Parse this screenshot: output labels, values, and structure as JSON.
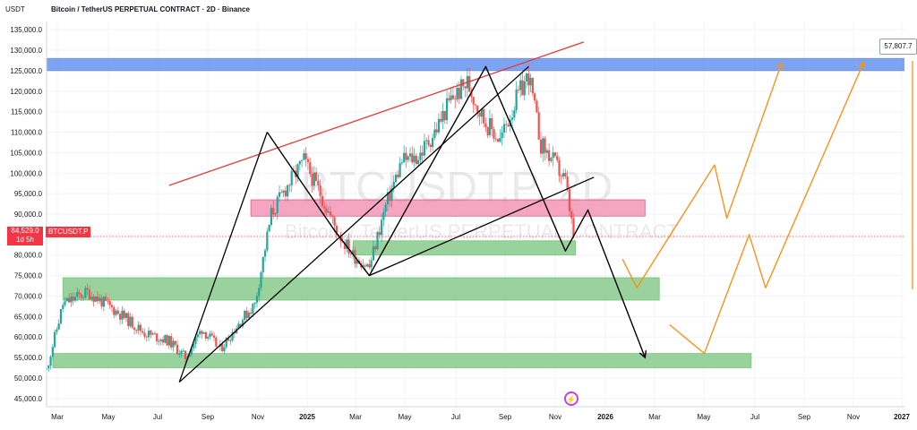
{
  "header": {
    "currency": "USDT",
    "title": "Bitcoin / TetherUS PERPETUAL CONTRACT · 2D · Binance"
  },
  "price_tag": {
    "price": "84,529.0",
    "countdown": "1d 5h",
    "symbol": "BTCUSDT.P"
  },
  "right_tag": "57,807.7",
  "watermark": {
    "line1": "BTCUSDT.P, 2D",
    "line2": "Bitcoin / TetherUS PERPETUAL CONTRACT"
  },
  "colors": {
    "up": "#26a69a",
    "down": "#ef5350",
    "blue_zone": "#5b8def",
    "pink_zone": "#f48fb1",
    "green_zone": "#81c784",
    "projection": "#f7931a",
    "trendline": "#e53935",
    "path": "#000000"
  },
  "chart_data": {
    "type": "candlestick",
    "title": "Bitcoin / TetherUS PERPETUAL CONTRACT · 2D · Binance",
    "ylabel": "USDT",
    "ylim": [
      43000,
      137000
    ],
    "y_ticks": [
      "135,000.0",
      "130,000.0",
      "125,000.0",
      "120,000.0",
      "115,000.0",
      "110,000.0",
      "105,000.0",
      "100,000.0",
      "95,000.0",
      "90,000.0",
      "85,000.0",
      "80,000.0",
      "75,000.0",
      "70,000.0",
      "65,000.0",
      "60,000.0",
      "55,000.0",
      "50,000.0",
      "45,000.0"
    ],
    "x_ticks": [
      "Mar",
      "May",
      "Jul",
      "Sep",
      "Nov",
      "2025",
      "Mar",
      "May",
      "Jul",
      "Sep",
      "Nov",
      "2026",
      "Mar",
      "May",
      "Jul",
      "Sep",
      "Nov",
      "2027"
    ],
    "last_price": 84529.0,
    "price_anchors": [
      [
        0,
        52000
      ],
      [
        8,
        68000
      ],
      [
        20,
        71000
      ],
      [
        35,
        66000
      ],
      [
        48,
        61000
      ],
      [
        60,
        59000
      ],
      [
        68,
        55000
      ],
      [
        76,
        62000
      ],
      [
        85,
        57000
      ],
      [
        95,
        64000
      ],
      [
        102,
        68000
      ],
      [
        110,
        90000
      ],
      [
        118,
        97000
      ],
      [
        126,
        103000
      ],
      [
        134,
        95000
      ],
      [
        142,
        86000
      ],
      [
        150,
        80000
      ],
      [
        158,
        77000
      ],
      [
        166,
        92000
      ],
      [
        174,
        103000
      ],
      [
        182,
        104000
      ],
      [
        190,
        110000
      ],
      [
        198,
        118000
      ],
      [
        206,
        122000
      ],
      [
        214,
        113000
      ],
      [
        222,
        108000
      ],
      [
        230,
        118000
      ],
      [
        236,
        124000
      ],
      [
        242,
        107000
      ],
      [
        248,
        103000
      ],
      [
        254,
        98000
      ],
      [
        258,
        84529
      ]
    ],
    "zones": [
      {
        "kind": "blue",
        "x0": 0,
        "x1": 440,
        "y_low": 125000,
        "y_high": 128000
      },
      {
        "kind": "pink",
        "x0": 100,
        "x1": 293,
        "y_low": 89500,
        "y_high": 93500
      },
      {
        "kind": "green",
        "x0": 150,
        "x1": 259,
        "y_low": 80000,
        "y_high": 83500
      },
      {
        "kind": "green",
        "x0": 8,
        "x1": 300,
        "y_low": 69000,
        "y_high": 74500
      },
      {
        "kind": "green",
        "x0": 3,
        "x1": 345,
        "y_low": 52500,
        "y_high": 56000
      }
    ],
    "trendlines": [
      {
        "kind": "red",
        "points": [
          [
            60,
            97000
          ],
          [
            263,
            132000
          ]
        ]
      },
      {
        "kind": "black",
        "points": [
          [
            65,
            49000
          ],
          [
            108,
            110000
          ]
        ]
      },
      {
        "kind": "black",
        "points": [
          [
            65,
            49000
          ],
          [
            236,
            126000
          ]
        ]
      },
      {
        "kind": "black",
        "points": [
          [
            158,
            75000
          ],
          [
            268,
            99000
          ]
        ]
      }
    ],
    "paths": [
      {
        "kind": "black",
        "points": [
          [
            108,
            110000
          ],
          [
            141,
            86000
          ],
          [
            158,
            75000
          ],
          [
            215,
            126000
          ],
          [
            254,
            81000
          ],
          [
            265,
            91000
          ],
          [
            293,
            55000
          ]
        ]
      },
      {
        "kind": "orange",
        "points": [
          [
            282,
            79000
          ],
          [
            289,
            72000
          ],
          [
            327,
            102000
          ],
          [
            333,
            89000
          ],
          [
            360,
            127000
          ]
        ]
      },
      {
        "kind": "orange",
        "points": [
          [
            305,
            63000
          ],
          [
            322,
            56000
          ],
          [
            344,
            85000
          ],
          [
            352,
            72000
          ],
          [
            400,
            127000
          ]
        ]
      }
    ],
    "x_range": [
      0,
      420
    ]
  }
}
